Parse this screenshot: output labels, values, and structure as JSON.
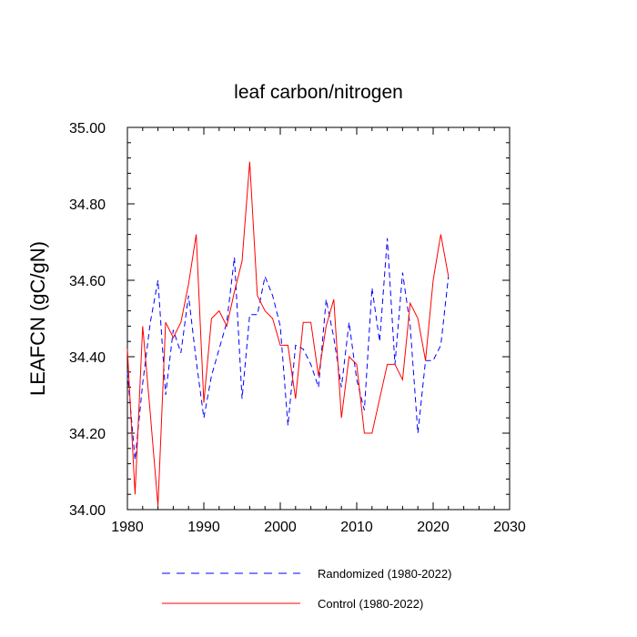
{
  "chart_data": {
    "type": "line",
    "title": "leaf carbon/nitrogen",
    "xlabel": "",
    "ylabel": "LEAFCN  (gC/gN)",
    "xlim": [
      1980,
      2030
    ],
    "ylim": [
      34.0,
      35.0
    ],
    "x_ticks": [
      "1980",
      "1990",
      "2000",
      "2010",
      "2020",
      "2030"
    ],
    "y_ticks": [
      "34.00",
      "34.20",
      "34.40",
      "34.60",
      "34.80",
      "35.00"
    ],
    "grid": false,
    "legend_position": "bottom",
    "series": [
      {
        "name": "Randomized (1980-2022)",
        "color": "#0000ff",
        "style": "dashed",
        "x": [
          1980,
          1981,
          1982,
          1983,
          1984,
          1985,
          1986,
          1987,
          1988,
          1989,
          1990,
          1991,
          1992,
          1993,
          1994,
          1995,
          1996,
          1997,
          1998,
          1999,
          2000,
          2001,
          2002,
          2003,
          2004,
          2005,
          2006,
          2007,
          2008,
          2009,
          2010,
          2011,
          2012,
          2013,
          2014,
          2015,
          2016,
          2017,
          2018,
          2019,
          2020,
          2021,
          2022
        ],
        "values": [
          34.36,
          34.13,
          34.33,
          34.49,
          34.6,
          34.3,
          34.47,
          34.41,
          34.56,
          34.39,
          34.24,
          34.35,
          34.42,
          34.49,
          34.66,
          34.29,
          34.51,
          34.51,
          34.61,
          34.56,
          34.48,
          34.22,
          34.43,
          34.42,
          34.38,
          34.32,
          34.55,
          34.45,
          34.32,
          34.49,
          34.34,
          34.26,
          34.58,
          34.44,
          34.71,
          34.38,
          34.62,
          34.48,
          34.2,
          34.39,
          34.39,
          34.43,
          34.61
        ]
      },
      {
        "name": "Control (1980-2022)",
        "color": "#ff0000",
        "style": "solid",
        "x": [
          1980,
          1981,
          1982,
          1983,
          1984,
          1985,
          1986,
          1987,
          1988,
          1989,
          1990,
          1991,
          1992,
          1993,
          1994,
          1995,
          1996,
          1997,
          1998,
          1999,
          2000,
          2001,
          2002,
          2003,
          2004,
          2005,
          2006,
          2007,
          2008,
          2009,
          2010,
          2011,
          2012,
          2013,
          2014,
          2015,
          2016,
          2017,
          2018,
          2019,
          2020,
          2021,
          2022
        ],
        "values": [
          34.42,
          34.04,
          34.48,
          34.25,
          34.01,
          34.49,
          34.45,
          34.49,
          34.59,
          34.72,
          34.28,
          34.5,
          34.52,
          34.48,
          34.57,
          34.65,
          34.91,
          34.56,
          34.52,
          34.5,
          34.43,
          34.43,
          34.29,
          34.49,
          34.49,
          34.35,
          34.48,
          34.55,
          34.24,
          34.4,
          34.38,
          34.2,
          34.2,
          34.29,
          34.38,
          34.38,
          34.34,
          34.54,
          34.5,
          34.39,
          34.6,
          34.72,
          34.61
        ]
      }
    ]
  }
}
